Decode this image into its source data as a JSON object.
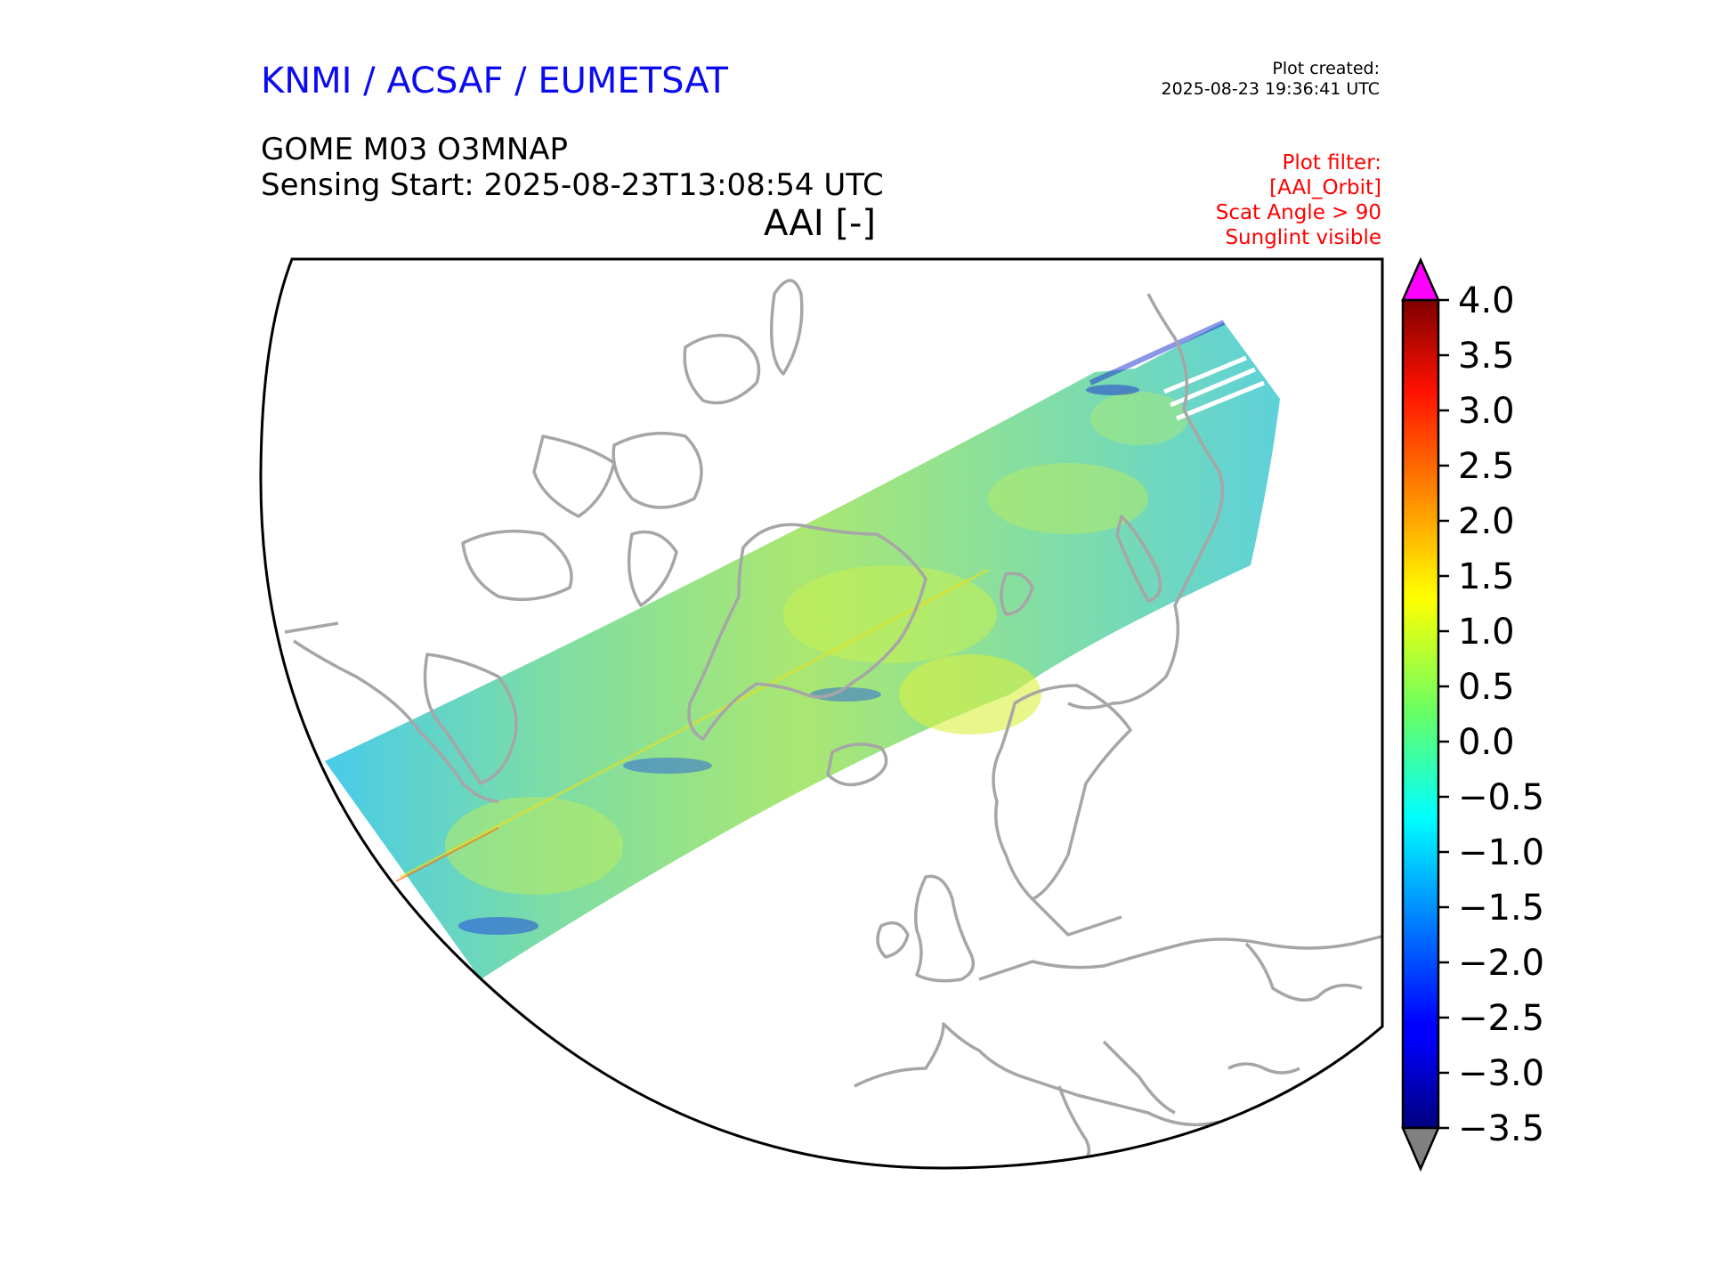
{
  "header": {
    "organization": "KNMI / ACSAF / EUMETSAT",
    "plot_created_label": "Plot created:",
    "plot_created_time": "2025-08-23 19:36:41 UTC",
    "product": "GOME M03 O3MNAP",
    "sensing_start": "Sensing Start: 2025-08-23T13:08:54 UTC",
    "parameter": "AAI [-]"
  },
  "filters": {
    "label": "Plot filter:",
    "lines": [
      "[AAI_Orbit]",
      "Scat Angle > 90",
      "Sunglint visible"
    ]
  },
  "colorbar": {
    "min": -3.5,
    "max": 4.0,
    "ticks": [
      "4.0",
      "3.5",
      "3.0",
      "2.5",
      "2.0",
      "1.5",
      "1.0",
      "0.5",
      "0.0",
      "−0.5",
      "−1.0",
      "−1.5",
      "−2.0",
      "−2.5",
      "−3.0",
      "−3.5"
    ],
    "colormap": "jet",
    "over_color": "#ff00ff",
    "under_color": "#808080"
  },
  "map": {
    "region": "North Atlantic / Arctic / Europe",
    "coastline_color": "#a6a6a6",
    "swath_description": "GOME-2 orbit swath of Absorbing Aerosol Index"
  }
}
